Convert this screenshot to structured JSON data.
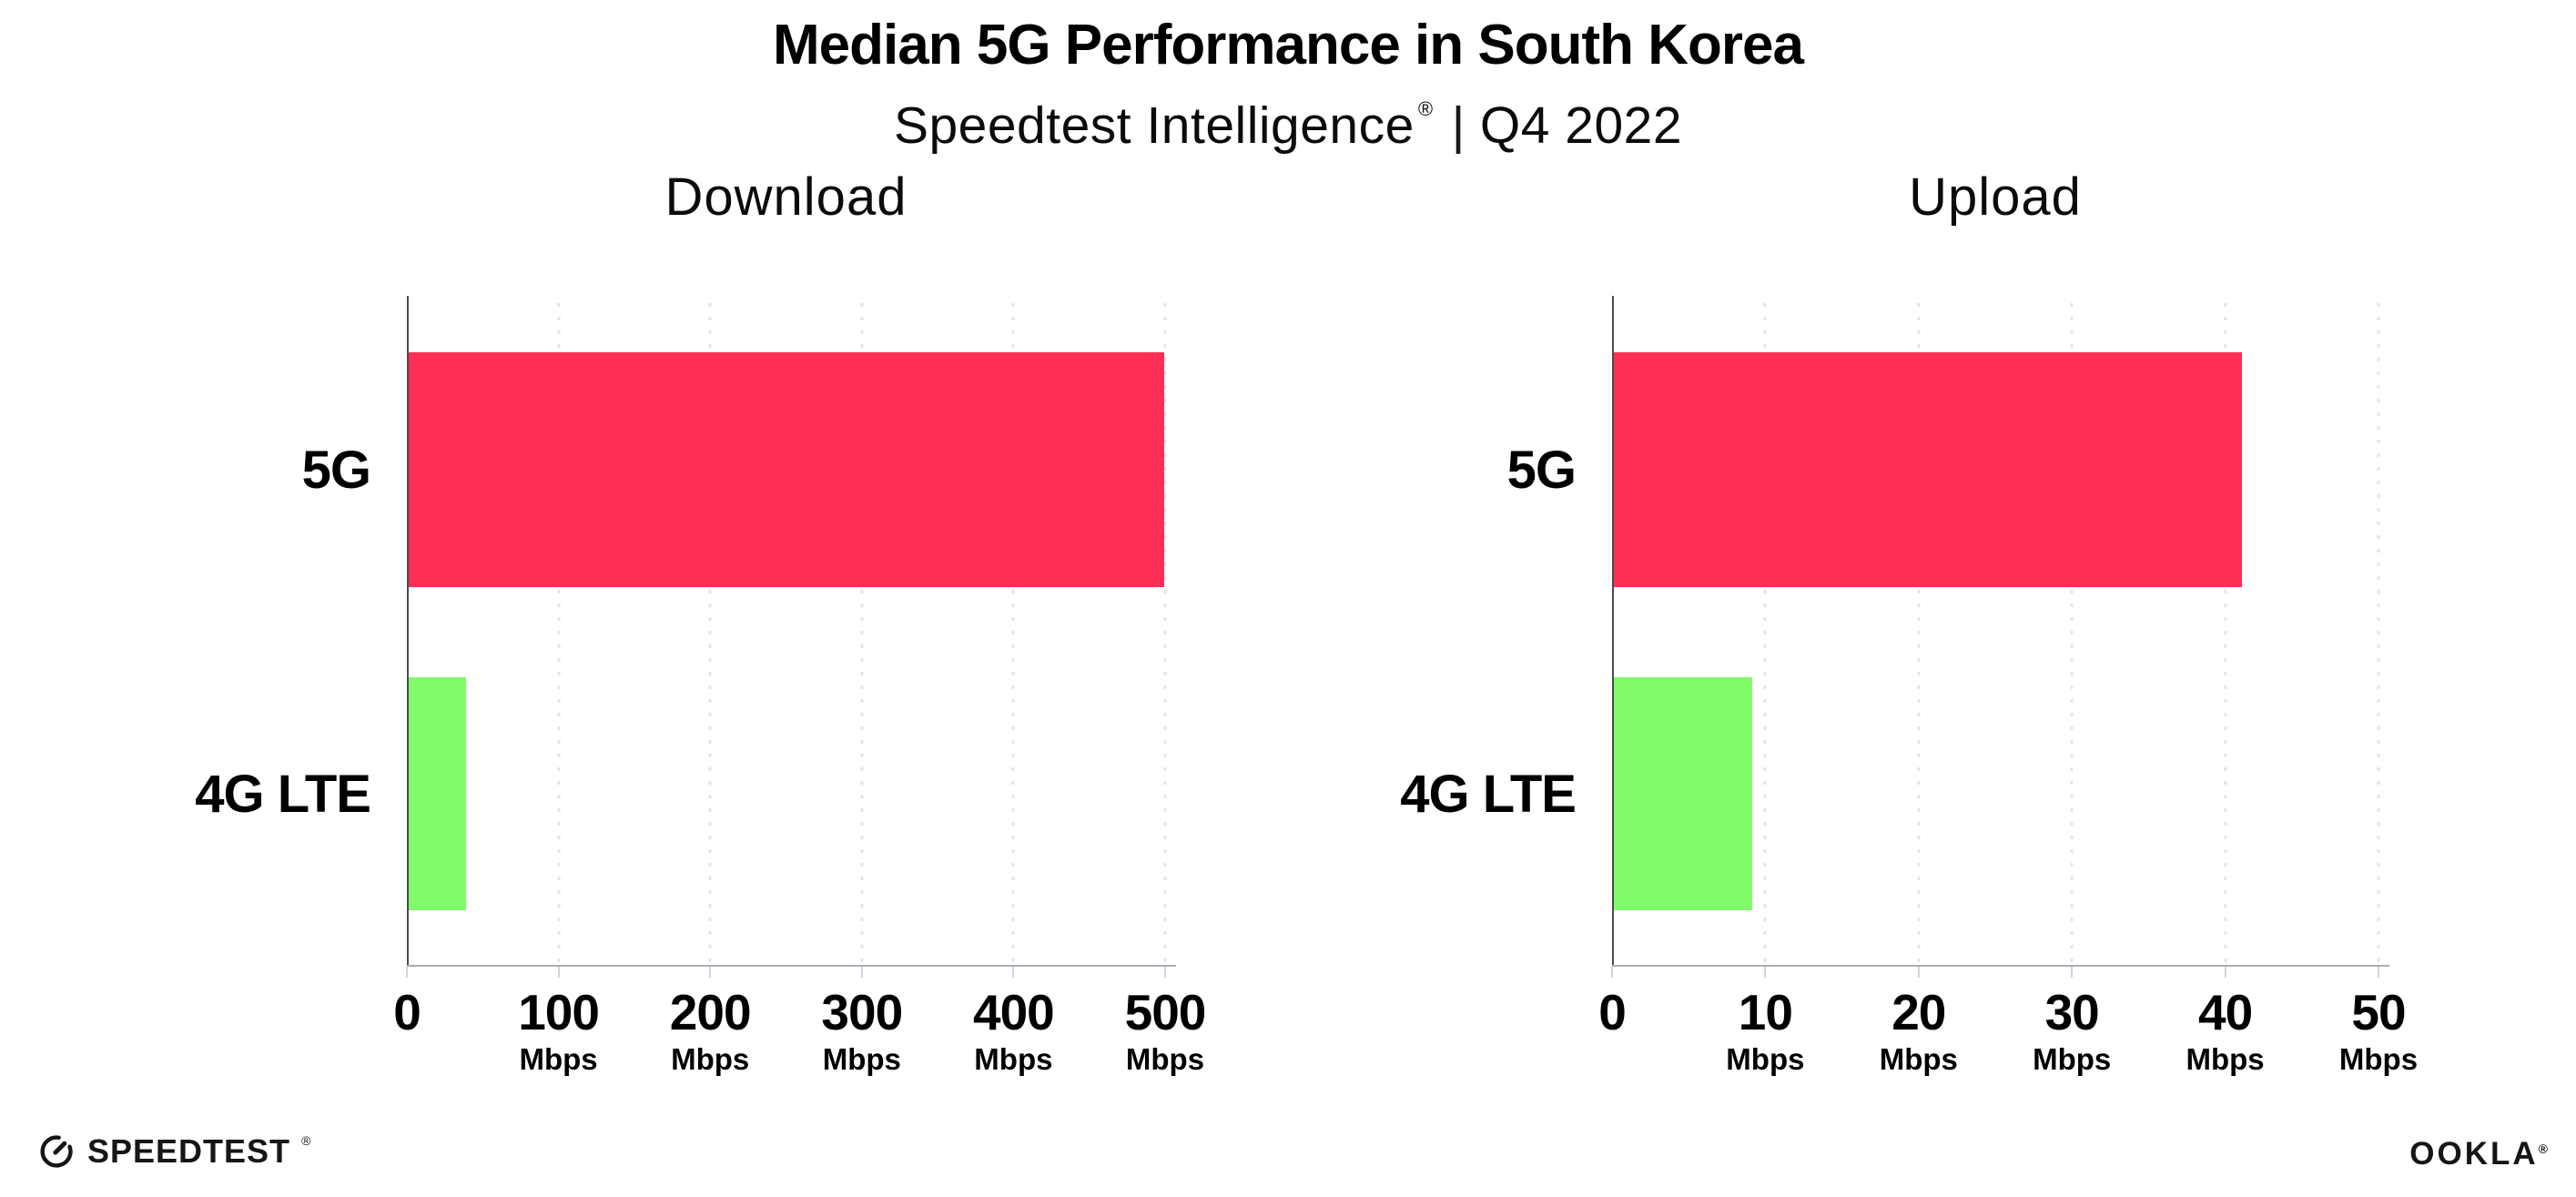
{
  "header": {
    "title": "Median 5G Performance in South Korea",
    "subtitle_product": "Speedtest Intelligence",
    "subtitle_reg": "®",
    "subtitle_separator": "|",
    "subtitle_period": "Q4 2022"
  },
  "colors": {
    "bar_5g": "#FF2E55",
    "bar_4g_lte": "#80FC6A",
    "gridline": "#E3E3EC",
    "x_axis": "#ACACB4",
    "y_axis": "#4A4A50",
    "text": "#000000"
  },
  "chart_data": [
    {
      "type": "bar",
      "orientation": "horizontal",
      "title": "Download",
      "categories": [
        "5G",
        "4G LTE"
      ],
      "values": [
        498,
        38
      ],
      "unit": "Mbps",
      "xlim": [
        0,
        500
      ],
      "ticks": [
        0,
        100,
        200,
        300,
        400,
        500
      ],
      "tick_unit_label": "Mbps",
      "grid": "vertical-dotted",
      "legend": "none",
      "series_colors": [
        "#FF2E55",
        "#80FC6A"
      ]
    },
    {
      "type": "bar",
      "orientation": "horizontal",
      "title": "Upload",
      "categories": [
        "5G",
        "4G LTE"
      ],
      "values": [
        41,
        9
      ],
      "unit": "Mbps",
      "xlim": [
        0,
        50
      ],
      "ticks": [
        0,
        10,
        20,
        30,
        40,
        50
      ],
      "tick_unit_label": "Mbps",
      "grid": "vertical-dotted",
      "legend": "none",
      "series_colors": [
        "#FF2E55",
        "#80FC6A"
      ]
    }
  ],
  "footer": {
    "speedtest_wordmark": "SPEEDTEST",
    "speedtest_reg": "®",
    "ookla_wordmark": "OOKLA",
    "ookla_reg": "®"
  }
}
